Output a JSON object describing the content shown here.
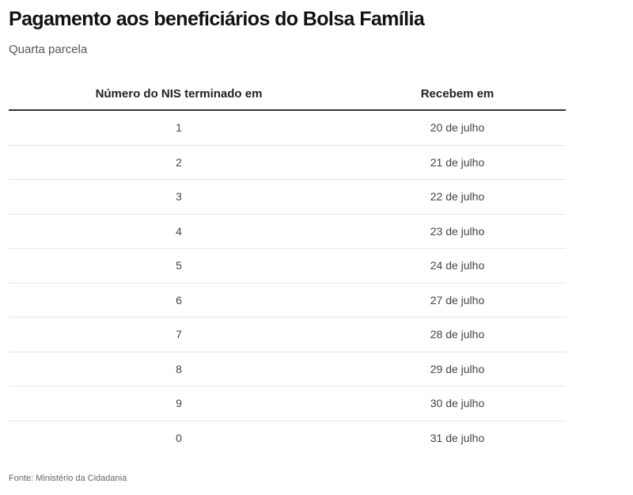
{
  "chart_data": {
    "type": "table",
    "title": "Pagamento aos beneficiários do Bolsa Família",
    "subtitle": "Quarta parcela",
    "columns": [
      "Número do NIS terminado em",
      "Recebem em"
    ],
    "rows": [
      [
        "1",
        "20 de julho"
      ],
      [
        "2",
        "21 de julho"
      ],
      [
        "3",
        "22 de julho"
      ],
      [
        "4",
        "23 de julho"
      ],
      [
        "5",
        "24 de julho"
      ],
      [
        "6",
        "27 de julho"
      ],
      [
        "7",
        "28 de julho"
      ],
      [
        "8",
        "29 de julho"
      ],
      [
        "9",
        "30 de julho"
      ],
      [
        "0",
        "31 de julho"
      ]
    ],
    "source": "Fonte: Ministério da Cidadania"
  }
}
